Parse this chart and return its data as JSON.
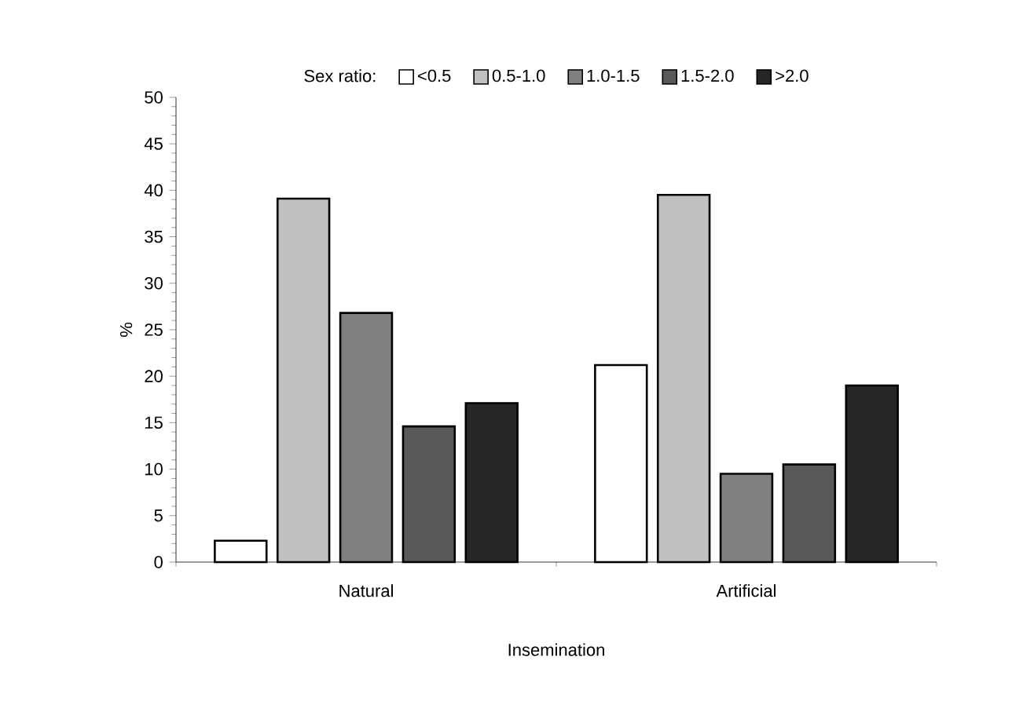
{
  "chart_data": {
    "type": "bar",
    "xlabel": "Insemination",
    "ylabel": "%",
    "legend_title": "Sex ratio:",
    "legend": "top",
    "categories": [
      "Natural",
      "Artificial"
    ],
    "ylim": [
      0,
      50
    ],
    "yticks": [
      0,
      5,
      10,
      15,
      20,
      25,
      30,
      35,
      40,
      45,
      50
    ],
    "series": [
      {
        "name": "<0.5",
        "color": "#ffffff",
        "values": [
          2.3,
          21.2
        ]
      },
      {
        "name": "0.5-1.0",
        "color": "#c0c0c0",
        "values": [
          39.1,
          39.5
        ]
      },
      {
        "name": "1.0-1.5",
        "color": "#808080",
        "values": [
          26.8,
          9.5
        ]
      },
      {
        "name": "1.5-2.0",
        "color": "#595959",
        "values": [
          14.6,
          10.5
        ]
      },
      {
        "name": ">2.0",
        "color": "#262626",
        "values": [
          17.1,
          19.0
        ]
      }
    ]
  }
}
